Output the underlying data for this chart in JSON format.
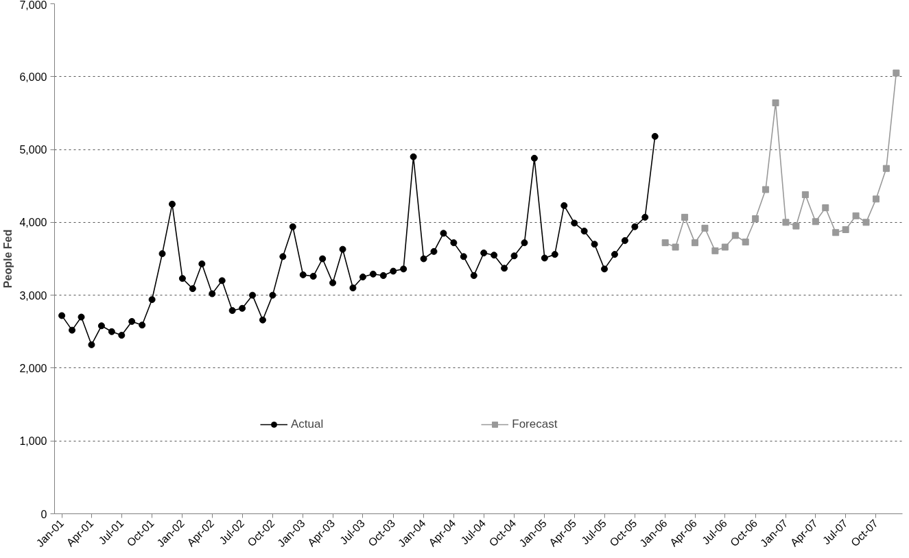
{
  "chart_data": {
    "type": "line",
    "ylabel": "People Fed",
    "xlim": [
      "2000-12-10",
      "2007-12-20"
    ],
    "ylim": [
      0,
      7000
    ],
    "yticks": [
      {
        "value": 0,
        "label": "0"
      },
      {
        "value": 1000,
        "label": "1,000"
      },
      {
        "value": 2000,
        "label": "2,000"
      },
      {
        "value": 3000,
        "label": "3,000"
      },
      {
        "value": 4000,
        "label": "4,000"
      },
      {
        "value": 5000,
        "label": "5,000"
      },
      {
        "value": 6000,
        "label": "6,000"
      },
      {
        "value": 7000,
        "label": "7,000"
      }
    ],
    "xticks": [
      {
        "value": "2001-01",
        "label": "Jan-01"
      },
      {
        "value": "2001-04",
        "label": "Apr-01"
      },
      {
        "value": "2001-07",
        "label": "Jul-01"
      },
      {
        "value": "2001-10",
        "label": "Oct-01"
      },
      {
        "value": "2002-01",
        "label": "Jan-02"
      },
      {
        "value": "2002-04",
        "label": "Apr-02"
      },
      {
        "value": "2002-07",
        "label": "Jul-02"
      },
      {
        "value": "2002-10",
        "label": "Oct-02"
      },
      {
        "value": "2003-01",
        "label": "Jan-03"
      },
      {
        "value": "2003-04",
        "label": "Apr-03"
      },
      {
        "value": "2003-07",
        "label": "Jul-03"
      },
      {
        "value": "2003-10",
        "label": "Oct-03"
      },
      {
        "value": "2004-01",
        "label": "Jan-04"
      },
      {
        "value": "2004-04",
        "label": "Apr-04"
      },
      {
        "value": "2004-07",
        "label": "Jul-04"
      },
      {
        "value": "2004-10",
        "label": "Oct-04"
      },
      {
        "value": "2005-01",
        "label": "Jan-05"
      },
      {
        "value": "2005-04",
        "label": "Apr-05"
      },
      {
        "value": "2005-07",
        "label": "Jul-05"
      },
      {
        "value": "2005-10",
        "label": "Oct-05"
      },
      {
        "value": "2006-01",
        "label": "Jan-06"
      },
      {
        "value": "2006-04",
        "label": "Apr-06"
      },
      {
        "value": "2006-07",
        "label": "Jul-06"
      },
      {
        "value": "2006-10",
        "label": "Oct-06"
      },
      {
        "value": "2007-01",
        "label": "Jan-07"
      },
      {
        "value": "2007-04",
        "label": "Apr-07"
      },
      {
        "value": "2007-07",
        "label": "Jul-07"
      },
      {
        "value": "2007-10",
        "label": "Oct-07"
      }
    ],
    "grid": "y",
    "legend": "bottom",
    "line_style": "solid",
    "series": [
      {
        "name": "Actual",
        "color": "#000000",
        "marker": "circle",
        "x": [
          "2001-01",
          "2001-02",
          "2001-03",
          "2001-04",
          "2001-05",
          "2001-06",
          "2001-07",
          "2001-08",
          "2001-09",
          "2001-10",
          "2001-11",
          "2001-12",
          "2002-01",
          "2002-02",
          "2002-03",
          "2002-04",
          "2002-05",
          "2002-06",
          "2002-07",
          "2002-08",
          "2002-09",
          "2002-10",
          "2002-11",
          "2002-12",
          "2003-01",
          "2003-02",
          "2003-03",
          "2003-04",
          "2003-05",
          "2003-06",
          "2003-07",
          "2003-08",
          "2003-09",
          "2003-10",
          "2003-11",
          "2003-12",
          "2004-01",
          "2004-02",
          "2004-03",
          "2004-04",
          "2004-05",
          "2004-06",
          "2004-07",
          "2004-08",
          "2004-09",
          "2004-10",
          "2004-11",
          "2004-12",
          "2005-01",
          "2005-02",
          "2005-03",
          "2005-04",
          "2005-05",
          "2005-06",
          "2005-07",
          "2005-08",
          "2005-09",
          "2005-10",
          "2005-11",
          "2005-12"
        ],
        "values": [
          2720,
          2520,
          2700,
          2320,
          2580,
          2500,
          2450,
          2640,
          2590,
          2940,
          3570,
          4250,
          3230,
          3090,
          3430,
          3020,
          3200,
          2790,
          2820,
          3000,
          2660,
          3000,
          3530,
          3940,
          3280,
          3260,
          3500,
          3170,
          3630,
          3100,
          3250,
          3290,
          3270,
          3330,
          3360,
          4900,
          3500,
          3600,
          3850,
          3720,
          3530,
          3270,
          3580,
          3550,
          3370,
          3540,
          3720,
          4880,
          3510,
          3560,
          4230,
          3990,
          3880,
          3700,
          3360,
          3560,
          3750,
          3940,
          4070,
          5180
        ]
      },
      {
        "name": "Forecast",
        "color": "#999999",
        "marker": "square",
        "x": [
          "2006-01",
          "2006-02",
          "2006-03",
          "2006-04",
          "2006-05",
          "2006-06",
          "2006-07",
          "2006-08",
          "2006-09",
          "2006-10",
          "2006-11",
          "2006-12",
          "2007-01",
          "2007-02",
          "2007-03",
          "2007-04",
          "2007-05",
          "2007-06",
          "2007-07",
          "2007-08",
          "2007-09",
          "2007-10",
          "2007-11",
          "2007-12"
        ],
        "values": [
          3720,
          3660,
          4070,
          3720,
          3920,
          3610,
          3660,
          3820,
          3730,
          4050,
          4450,
          5640,
          4000,
          3950,
          4380,
          4010,
          4200,
          3860,
          3900,
          4090,
          4000,
          4320,
          4740,
          6050
        ]
      }
    ]
  }
}
